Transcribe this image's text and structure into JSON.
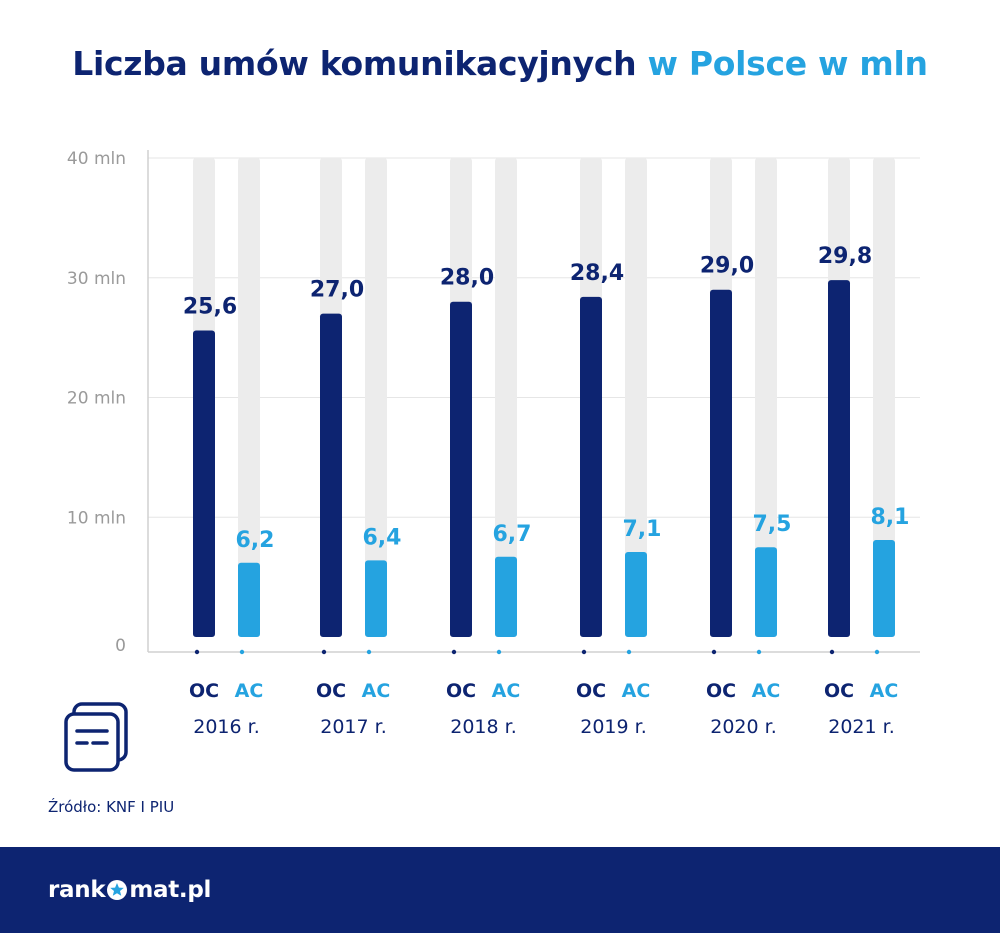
{
  "title": {
    "main": "Liczba umów komunikacyjnych",
    "accent": "w Polsce w mln"
  },
  "source": "Źródło: KNF I PIU",
  "logo": {
    "part1": "rank",
    "part2": "mat.pl"
  },
  "colors": {
    "oc": "#0d2471",
    "ac": "#25a3e0",
    "track": "#ececec",
    "grid": "#e6e6e6",
    "axis_text": "#9a9a9a"
  },
  "icons": {
    "document": "documents-icon",
    "logo_mark": "star-circle-icon"
  },
  "chart_data": {
    "type": "bar",
    "title": "Liczba umów komunikacyjnych w Polsce w mln",
    "categories": [
      "2016 r.",
      "2017 r.",
      "2018 r.",
      "2019 r.",
      "2020 r.",
      "2021 r."
    ],
    "series": [
      {
        "name": "OC",
        "values": [
          25.6,
          27.0,
          28.0,
          28.4,
          29.0,
          29.8
        ],
        "labels": [
          "25,6",
          "27,0",
          "28,0",
          "28,4",
          "29,0",
          "29,8"
        ]
      },
      {
        "name": "AC",
        "values": [
          6.2,
          6.4,
          6.7,
          7.1,
          7.5,
          8.1
        ],
        "labels": [
          "6,2",
          "6,4",
          "6,7",
          "7,1",
          "7,5",
          "8,1"
        ]
      }
    ],
    "ylim": [
      0,
      40
    ],
    "yticks": [
      0,
      10,
      20,
      30,
      40
    ],
    "ytick_labels": [
      "0",
      "10 mln",
      "20 mln",
      "30 mln",
      "40 mln"
    ],
    "grid": true,
    "legend": "per-bar labels under each bar"
  }
}
